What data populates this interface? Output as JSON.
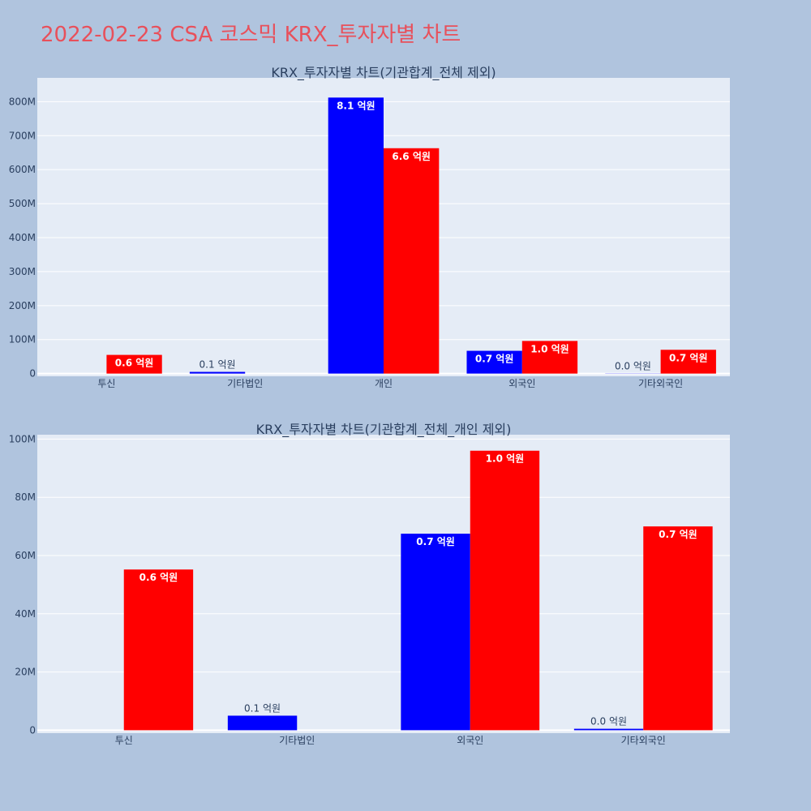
{
  "page": {
    "title": "2022-02-23 CSA 코스믹 KRX_투자자별 차트"
  },
  "colors": {
    "buy": "#0000ff",
    "sell": "#ff0000",
    "plot_bg": "#e5ecf6",
    "page_bg": "#b0c4de"
  },
  "chart_data": [
    {
      "type": "bar",
      "title": "KRX_투자자별 차트(기관합계_전체 제외)",
      "categories": [
        "투신",
        "기타법인",
        "개인",
        "외국인",
        "기타외국인"
      ],
      "series": [
        {
          "values": [
            0,
            5000000,
            812000000,
            67000000,
            500000
          ],
          "labels": [
            "",
            "0.1 억원",
            "8.1 억원",
            "0.7 억원",
            "0.0 억원"
          ]
        },
        {
          "values": [
            55000000,
            0,
            663000000,
            96000000,
            70000000
          ],
          "labels": [
            "0.6 억원",
            "",
            "6.6 억원",
            "1.0 억원",
            "0.7 억원"
          ]
        }
      ],
      "ylim": [
        -8000000,
        870000000
      ],
      "yticks": [
        0,
        100000000,
        200000000,
        300000000,
        400000000,
        500000000,
        600000000,
        700000000,
        800000000
      ],
      "ytick_labels": [
        "0",
        "100M",
        "200M",
        "300M",
        "400M",
        "500M",
        "600M",
        "700M",
        "800M"
      ],
      "grid": true,
      "legend": "none"
    },
    {
      "type": "bar",
      "title": "KRX_투자자별 차트(기관합계_전체_개인 제외)",
      "categories": [
        "투신",
        "기타법인",
        "외국인",
        "기타외국인"
      ],
      "series": [
        {
          "values": [
            0,
            5000000,
            67500000,
            500000
          ],
          "labels": [
            "",
            "0.1 억원",
            "0.7 억원",
            "0.0 억원"
          ]
        },
        {
          "values": [
            55200000,
            0,
            96000000,
            70000000
          ],
          "labels": [
            "0.6 억원",
            "",
            "1.0 억원",
            "0.7 억원"
          ]
        }
      ],
      "ylim": [
        -1000000,
        101500000
      ],
      "yticks": [
        0,
        20000000,
        40000000,
        60000000,
        80000000,
        100000000
      ],
      "ytick_labels": [
        "0",
        "20M",
        "40M",
        "60M",
        "80M",
        "100M"
      ],
      "grid": true,
      "legend": "none"
    }
  ]
}
